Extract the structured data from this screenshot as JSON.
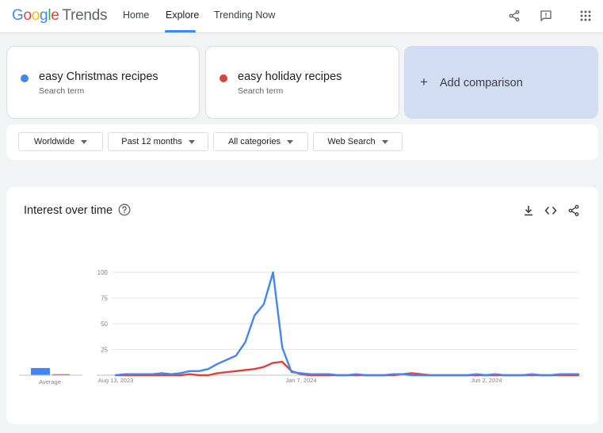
{
  "header": {
    "logo": {
      "google": [
        "G",
        "o",
        "o",
        "g",
        "l",
        "e"
      ],
      "product": "Trends"
    },
    "tabs": [
      {
        "label": "Home"
      },
      {
        "label": "Explore"
      },
      {
        "label": "Trending Now"
      }
    ],
    "active_tab": "Explore",
    "icons": [
      "share-icon",
      "feedback-icon",
      "apps-grid-icon"
    ]
  },
  "terms": [
    {
      "label": "easy Christmas recipes",
      "sub": "Search term",
      "color": "#4285f4"
    },
    {
      "label": "easy holiday recipes",
      "sub": "Search term",
      "color": "#db4437"
    }
  ],
  "add_comparison": {
    "label": "Add comparison"
  },
  "filters": [
    {
      "label": "Worldwide"
    },
    {
      "label": "Past 12 months"
    },
    {
      "label": "All categories"
    },
    {
      "label": "Web Search"
    }
  ],
  "interest": {
    "title": "Interest over time",
    "icons": [
      "help-icon",
      "download-icon",
      "embed-icon",
      "share-icon"
    ]
  },
  "chart_data": {
    "type": "line",
    "y_ticks": [
      25,
      50,
      75,
      100
    ],
    "ylim": [
      0,
      100
    ],
    "x_tick_labels": [
      "Aug 13, 2023",
      "Jan 7, 2024",
      "Jun 2, 2024"
    ],
    "average_label": "Average",
    "averages": [
      7,
      1
    ],
    "grid": true,
    "series": [
      {
        "name": "easy Christmas recipes",
        "color": "#4285f4",
        "values": [
          0,
          1,
          1,
          1,
          1,
          2,
          1,
          2,
          4,
          4,
          6,
          11,
          15,
          19,
          32,
          58,
          69,
          100,
          27,
          3,
          2,
          1,
          1,
          1,
          0,
          0,
          1,
          0,
          0,
          0,
          1,
          1,
          0,
          0,
          0,
          0,
          0,
          0,
          0,
          1,
          0,
          1,
          0,
          0,
          0,
          1,
          0,
          0,
          1,
          1,
          1
        ]
      },
      {
        "name": "easy holiday recipes",
        "color": "#db4437",
        "values": [
          0,
          0,
          0,
          0,
          0,
          0,
          0,
          0,
          1,
          0,
          0,
          2,
          3,
          4,
          5,
          6,
          8,
          12,
          13,
          4,
          1,
          0,
          0,
          0,
          0,
          0,
          0,
          0,
          0,
          0,
          0,
          1,
          2,
          1,
          0,
          0,
          0,
          0,
          0,
          0,
          0,
          0,
          0,
          0,
          0,
          0,
          0,
          0,
          0,
          0,
          0
        ]
      }
    ]
  }
}
